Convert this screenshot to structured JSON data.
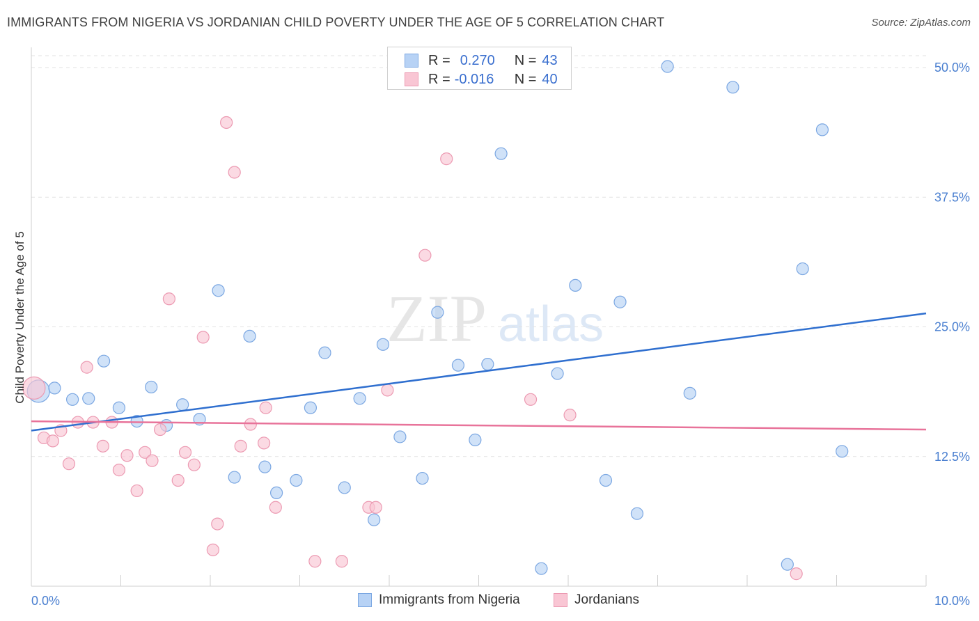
{
  "title": "IMMIGRANTS FROM NIGERIA VS JORDANIAN CHILD POVERTY UNDER THE AGE OF 5 CORRELATION CHART",
  "source": "Source: ZipAtlas.com",
  "watermark": {
    "zip": "ZIP",
    "atlas": "atlas"
  },
  "legend": {
    "rows": [
      {
        "r_label": "R =",
        "r_value": "0.270",
        "n_label": "N =",
        "n_value": "43",
        "color": "#b7d2f5",
        "border": "#7ba7e2"
      },
      {
        "r_label": "R =",
        "r_value": "-0.016",
        "n_label": "N =",
        "n_value": "40",
        "color": "#f9c6d4",
        "border": "#ec9ab2"
      }
    ]
  },
  "bottom_legend": [
    {
      "label": "Immigrants from Nigeria",
      "color": "#b7d2f5",
      "border": "#7ba7e2"
    },
    {
      "label": "Jordanians",
      "color": "#f9c6d4",
      "border": "#ec9ab2"
    }
  ],
  "chart_data": {
    "type": "scatter",
    "title": "IMMIGRANTS FROM NIGERIA VS JORDANIAN CHILD POVERTY UNDER THE AGE OF 5 CORRELATION CHART",
    "xlabel": "",
    "ylabel": "Child Poverty Under the Age of 5",
    "xlim": [
      0,
      10
    ],
    "ylim": [
      0,
      50
    ],
    "x_tick_labels": [
      "0.0%",
      "10.0%"
    ],
    "y_ticks": [
      12.5,
      25.0,
      37.5,
      50.0
    ],
    "y_tick_labels": [
      "12.5%",
      "25.0%",
      "37.5%",
      "50.0%"
    ],
    "grid": true,
    "legend_position": "top-center",
    "series": [
      {
        "name": "Immigrants from Nigeria",
        "color": "#b7d2f5",
        "stroke": "#7ba7e2",
        "trend_color": "#2f6fcf",
        "trend": {
          "x": [
            0,
            10
          ],
          "y": [
            15.0,
            26.3
          ]
        },
        "points": [
          {
            "x": 0.08,
            "y": 18.8,
            "big": true
          },
          {
            "x": 0.26,
            "y": 19.1
          },
          {
            "x": 0.46,
            "y": 18.0
          },
          {
            "x": 0.64,
            "y": 18.1
          },
          {
            "x": 0.81,
            "y": 21.7
          },
          {
            "x": 0.98,
            "y": 17.2
          },
          {
            "x": 1.18,
            "y": 15.9
          },
          {
            "x": 1.34,
            "y": 19.2
          },
          {
            "x": 1.51,
            "y": 15.5
          },
          {
            "x": 1.69,
            "y": 17.5
          },
          {
            "x": 1.88,
            "y": 16.1
          },
          {
            "x": 2.09,
            "y": 28.5
          },
          {
            "x": 2.27,
            "y": 10.5
          },
          {
            "x": 2.44,
            "y": 24.1
          },
          {
            "x": 2.61,
            "y": 11.5
          },
          {
            "x": 2.74,
            "y": 9.0
          },
          {
            "x": 2.96,
            "y": 10.2
          },
          {
            "x": 3.12,
            "y": 17.2
          },
          {
            "x": 3.28,
            "y": 22.5
          },
          {
            "x": 3.5,
            "y": 9.5
          },
          {
            "x": 3.67,
            "y": 18.1
          },
          {
            "x": 3.83,
            "y": 6.4
          },
          {
            "x": 3.93,
            "y": 23.3
          },
          {
            "x": 4.12,
            "y": 14.4
          },
          {
            "x": 4.37,
            "y": 10.4
          },
          {
            "x": 4.54,
            "y": 26.4
          },
          {
            "x": 4.77,
            "y": 21.3
          },
          {
            "x": 4.96,
            "y": 14.1
          },
          {
            "x": 5.1,
            "y": 21.4
          },
          {
            "x": 5.25,
            "y": 41.7
          },
          {
            "x": 5.7,
            "y": 1.7
          },
          {
            "x": 5.88,
            "y": 20.5
          },
          {
            "x": 6.08,
            "y": 29.0
          },
          {
            "x": 6.42,
            "y": 10.2
          },
          {
            "x": 6.58,
            "y": 27.4
          },
          {
            "x": 6.77,
            "y": 7.0
          },
          {
            "x": 7.11,
            "y": 50.1
          },
          {
            "x": 7.36,
            "y": 18.6
          },
          {
            "x": 7.84,
            "y": 48.1
          },
          {
            "x": 8.45,
            "y": 2.1
          },
          {
            "x": 8.62,
            "y": 30.6
          },
          {
            "x": 8.84,
            "y": 44.0
          },
          {
            "x": 9.06,
            "y": 13.0
          }
        ]
      },
      {
        "name": "Jordanians",
        "color": "#f9c6d4",
        "stroke": "#ec9ab2",
        "trend_color": "#e8739a",
        "trend": {
          "x": [
            0,
            10
          ],
          "y": [
            15.9,
            15.1
          ]
        },
        "points": [
          {
            "x": 0.03,
            "y": 19.1,
            "big": true
          },
          {
            "x": 0.14,
            "y": 14.3
          },
          {
            "x": 0.24,
            "y": 14.0
          },
          {
            "x": 0.33,
            "y": 15.0
          },
          {
            "x": 0.42,
            "y": 11.8
          },
          {
            "x": 0.52,
            "y": 15.8
          },
          {
            "x": 0.62,
            "y": 21.1
          },
          {
            "x": 0.69,
            "y": 15.8
          },
          {
            "x": 0.8,
            "y": 13.5
          },
          {
            "x": 0.9,
            "y": 15.8
          },
          {
            "x": 0.98,
            "y": 11.2
          },
          {
            "x": 1.07,
            "y": 12.6
          },
          {
            "x": 1.18,
            "y": 9.2
          },
          {
            "x": 1.27,
            "y": 12.9
          },
          {
            "x": 1.35,
            "y": 12.1
          },
          {
            "x": 1.44,
            "y": 15.1
          },
          {
            "x": 1.54,
            "y": 27.7
          },
          {
            "x": 1.64,
            "y": 10.2
          },
          {
            "x": 1.72,
            "y": 12.9
          },
          {
            "x": 1.82,
            "y": 11.7
          },
          {
            "x": 1.92,
            "y": 24.0
          },
          {
            "x": 2.03,
            "y": 3.5
          },
          {
            "x": 2.08,
            "y": 6.0
          },
          {
            "x": 2.18,
            "y": 44.7
          },
          {
            "x": 2.27,
            "y": 39.9
          },
          {
            "x": 2.34,
            "y": 13.5
          },
          {
            "x": 2.45,
            "y": 15.6
          },
          {
            "x": 2.6,
            "y": 13.8
          },
          {
            "x": 2.62,
            "y": 17.2
          },
          {
            "x": 2.73,
            "y": 7.6
          },
          {
            "x": 3.17,
            "y": 2.4
          },
          {
            "x": 3.47,
            "y": 2.4
          },
          {
            "x": 3.77,
            "y": 7.6
          },
          {
            "x": 3.85,
            "y": 7.6
          },
          {
            "x": 3.98,
            "y": 18.9
          },
          {
            "x": 4.4,
            "y": 31.9
          },
          {
            "x": 4.64,
            "y": 41.2
          },
          {
            "x": 5.58,
            "y": 18.0
          },
          {
            "x": 6.02,
            "y": 16.5
          },
          {
            "x": 8.55,
            "y": 1.2
          }
        ]
      }
    ]
  }
}
